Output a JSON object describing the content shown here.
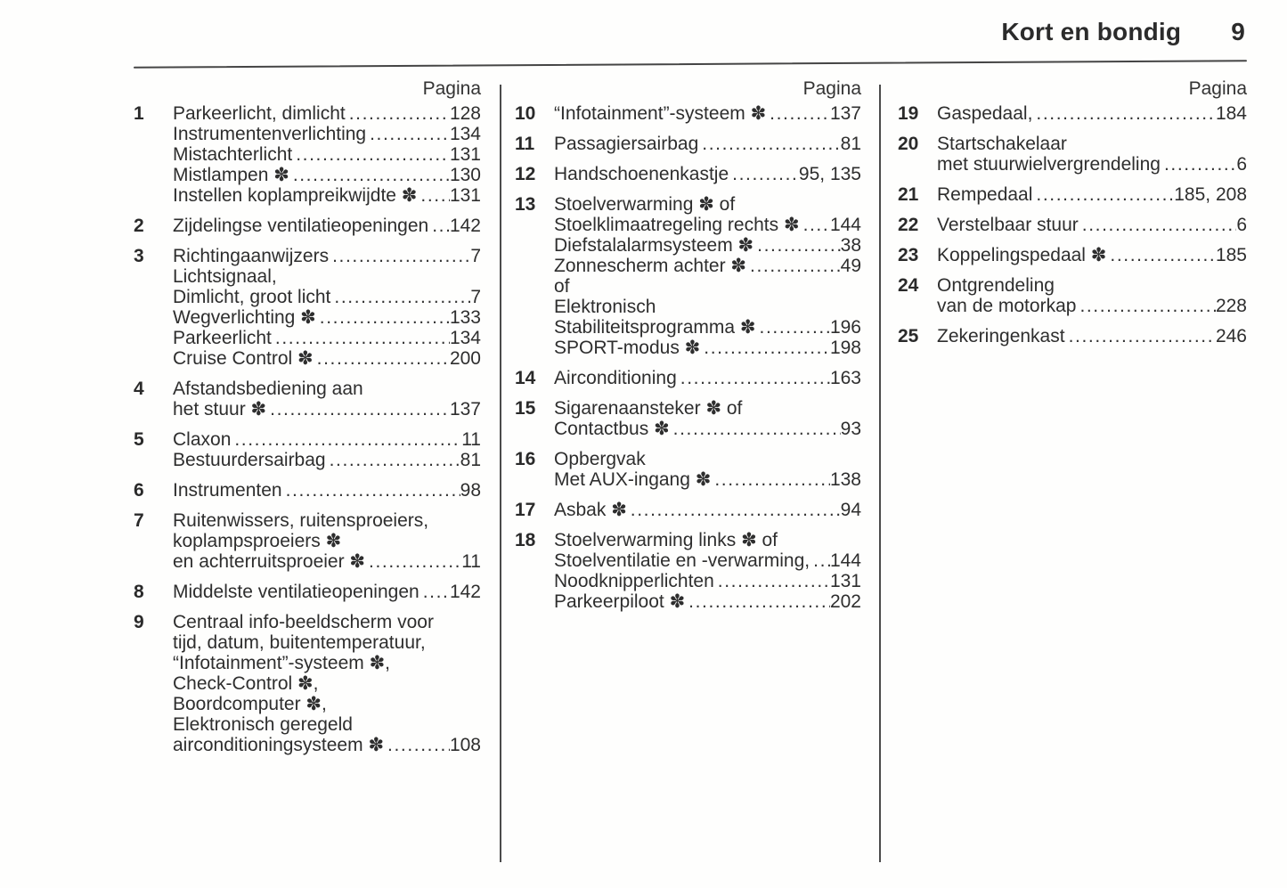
{
  "header": {
    "title": "Kort en bondig",
    "page_number": "9"
  },
  "columns": [
    {
      "pagina": "Pagina",
      "entries": [
        {
          "num": "1",
          "lines": [
            {
              "text": "Parkeerlicht, dimlicht",
              "page": "128"
            },
            {
              "text": "Instrumentenverlichting",
              "page": "134"
            },
            {
              "text": "Mistachterlicht",
              "page": "131"
            },
            {
              "text": "Mistlampen ✽",
              "page": "130"
            },
            {
              "text": "Instellen koplampreikwijdte ✽",
              "page": "131"
            }
          ]
        },
        {
          "num": "2",
          "lines": [
            {
              "text": "Zijdelingse ventilatieopeningen",
              "page": "142"
            }
          ]
        },
        {
          "num": "3",
          "lines": [
            {
              "text": "Richtingaanwijzers",
              "page": "7"
            },
            {
              "text": "Lichtsignaal,",
              "page": ""
            },
            {
              "text": "Dimlicht, groot licht",
              "page": "7"
            },
            {
              "text": "Wegverlichting ✽",
              "page": "133"
            },
            {
              "text": "Parkeerlicht",
              "page": "134"
            },
            {
              "text": "Cruise Control ✽",
              "page": "200"
            }
          ]
        },
        {
          "num": "4",
          "lines": [
            {
              "text": "Afstandsbediening aan",
              "page": ""
            },
            {
              "text": "het stuur ✽",
              "page": "137"
            }
          ]
        },
        {
          "num": "5",
          "lines": [
            {
              "text": "Claxon",
              "page": "11"
            },
            {
              "text": "Bestuurdersairbag",
              "page": "81"
            }
          ]
        },
        {
          "num": "6",
          "lines": [
            {
              "text": "Instrumenten",
              "page": "98"
            }
          ]
        },
        {
          "num": "7",
          "lines": [
            {
              "text": "Ruitenwissers, ruitensproeiers,",
              "page": ""
            },
            {
              "text": "koplampsproeiers ✽",
              "page": ""
            },
            {
              "text": "en achterruitsproeier ✽",
              "page": "11"
            }
          ]
        },
        {
          "num": "8",
          "lines": [
            {
              "text": "Middelste ventilatieopeningen",
              "page": "142"
            }
          ]
        },
        {
          "num": "9",
          "lines": [
            {
              "text": "Centraal info-beeldscherm voor",
              "page": ""
            },
            {
              "text": "tijd, datum, buitentemperatuur,",
              "page": ""
            },
            {
              "text": "“Infotainment”-systeem ✽,",
              "page": ""
            },
            {
              "text": "Check-Control ✽,",
              "page": ""
            },
            {
              "text": "Boordcomputer ✽,",
              "page": ""
            },
            {
              "text": "Elektronisch geregeld",
              "page": ""
            },
            {
              "text": "airconditioningsysteem ✽",
              "page": "108"
            }
          ]
        }
      ]
    },
    {
      "pagina": "Pagina",
      "entries": [
        {
          "num": "10",
          "lines": [
            {
              "text": "“Infotainment”-systeem ✽",
              "page": "137"
            }
          ]
        },
        {
          "num": "11",
          "lines": [
            {
              "text": "Passagiersairbag",
              "page": "81"
            }
          ]
        },
        {
          "num": "12",
          "lines": [
            {
              "text": "Handschoenenkastje",
              "page": "95, 135"
            }
          ]
        },
        {
          "num": "13",
          "lines": [
            {
              "text": "Stoelverwarming ✽ of",
              "page": ""
            },
            {
              "text": "Stoelklimaatregeling rechts ✽",
              "page": "144"
            },
            {
              "text": "Diefstalalarmsysteem ✽",
              "page": "38"
            },
            {
              "text": "Zonnescherm achter ✽",
              "page": "49"
            },
            {
              "text": "of",
              "page": ""
            },
            {
              "text": "Elektronisch",
              "page": ""
            },
            {
              "text": "Stabiliteitsprogramma ✽",
              "page": "196"
            },
            {
              "text": "SPORT-modus ✽",
              "page": "198"
            }
          ]
        },
        {
          "num": "14",
          "lines": [
            {
              "text": "Airconditioning",
              "page": "163"
            }
          ]
        },
        {
          "num": "15",
          "lines": [
            {
              "text": "Sigarenaansteker ✽ of",
              "page": ""
            },
            {
              "text": "Contactbus ✽",
              "page": "93"
            }
          ]
        },
        {
          "num": "16",
          "lines": [
            {
              "text": "Opbergvak",
              "page": ""
            },
            {
              "text": "Met AUX-ingang ✽",
              "page": "138"
            }
          ]
        },
        {
          "num": "17",
          "lines": [
            {
              "text": "Asbak ✽",
              "page": "94"
            }
          ]
        },
        {
          "num": "18",
          "lines": [
            {
              "text": "Stoelverwarming links ✽ of",
              "page": ""
            },
            {
              "text": "Stoelventilatie en -verwarming,",
              "page": "144"
            },
            {
              "text": "Noodknipperlichten",
              "page": "131"
            },
            {
              "text": "Parkeerpiloot ✽",
              "page": "202"
            }
          ]
        }
      ]
    },
    {
      "pagina": "Pagina",
      "entries": [
        {
          "num": "19",
          "lines": [
            {
              "text": "Gaspedaal,",
              "page": "184"
            }
          ]
        },
        {
          "num": "20",
          "lines": [
            {
              "text": "Startschakelaar",
              "page": ""
            },
            {
              "text": "met stuurwielvergrendeling",
              "page": "6"
            }
          ]
        },
        {
          "num": "21",
          "lines": [
            {
              "text": "Rempedaal",
              "page": "185, 208"
            }
          ]
        },
        {
          "num": "22",
          "lines": [
            {
              "text": "Verstelbaar stuur",
              "page": "6"
            }
          ]
        },
        {
          "num": "23",
          "lines": [
            {
              "text": "Koppelingspedaal ✽",
              "page": "185"
            }
          ]
        },
        {
          "num": "24",
          "lines": [
            {
              "text": "Ontgrendeling",
              "page": ""
            },
            {
              "text": "van de motorkap",
              "page": "228"
            }
          ]
        },
        {
          "num": "25",
          "lines": [
            {
              "text": "Zekeringenkast",
              "page": "246"
            }
          ]
        }
      ]
    }
  ]
}
